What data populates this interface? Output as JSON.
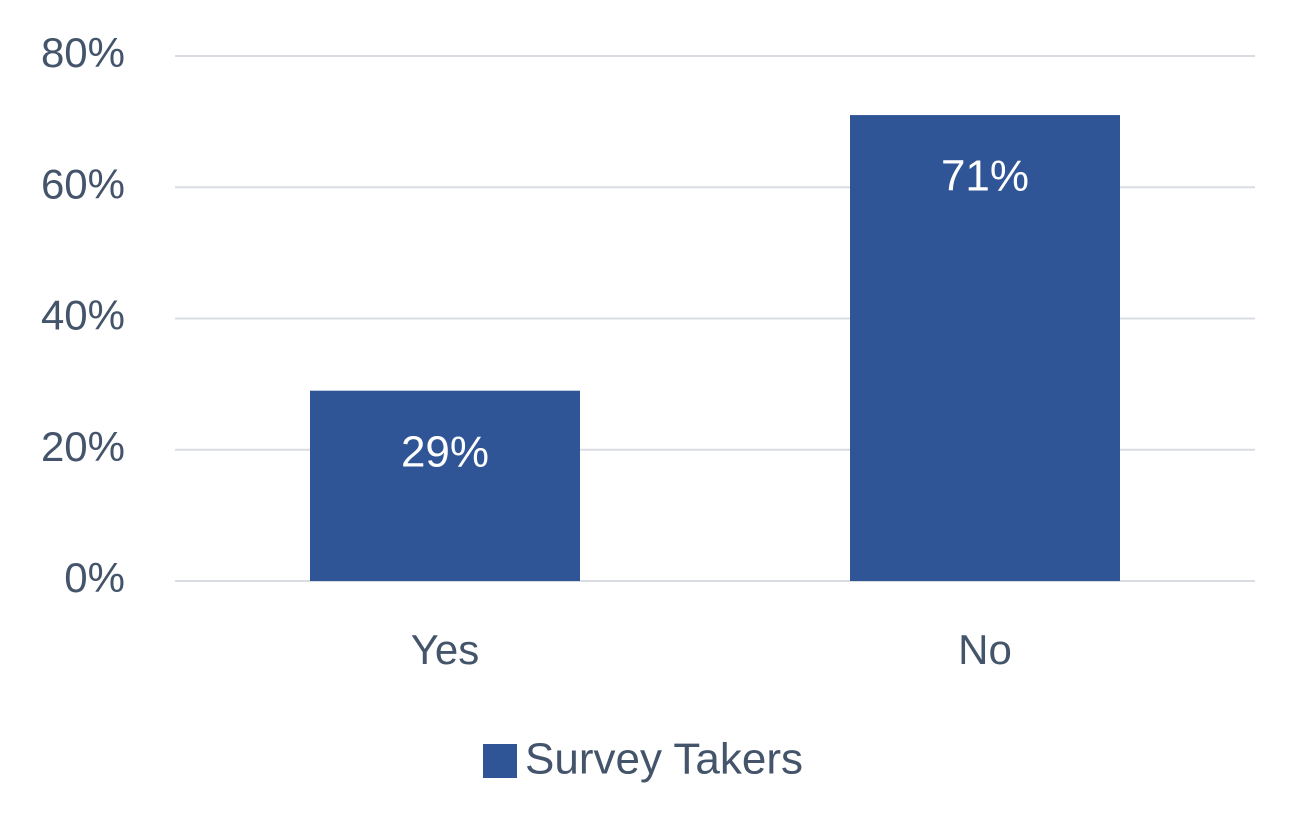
{
  "chart_data": {
    "type": "bar",
    "categories": [
      "Yes",
      "No"
    ],
    "series": [
      {
        "name": "Survey Takers",
        "color": "#2f5597",
        "values": [
          29,
          71
        ],
        "value_labels": [
          "29%",
          "71%"
        ]
      }
    ],
    "ylim": [
      0,
      80
    ],
    "yticks": [
      {
        "value": 0,
        "label": "0%"
      },
      {
        "value": 20,
        "label": "20%"
      },
      {
        "value": 40,
        "label": "40%"
      },
      {
        "value": 60,
        "label": "60%"
      },
      {
        "value": 80,
        "label": "80%"
      }
    ],
    "grid": true,
    "legend": "bottom"
  }
}
